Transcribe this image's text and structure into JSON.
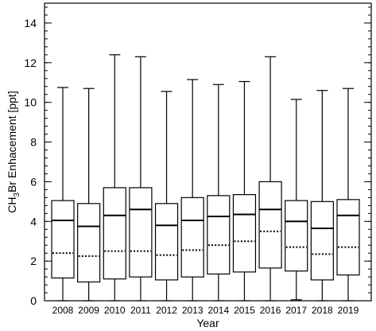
{
  "chart_data": {
    "type": "box",
    "title": "",
    "xlabel": "Year",
    "ylabel_main": "CH",
    "ylabel_sub": "3",
    "ylabel_rest": "Br Enhacement [ppt]",
    "ylim": [
      0,
      15
    ],
    "yticks": [
      0,
      2,
      4,
      6,
      8,
      10,
      12,
      14
    ],
    "yticks_minor_step": 0.4,
    "grid": false,
    "categories": [
      "2008",
      "2009",
      "2010",
      "2011",
      "2012",
      "2013",
      "2014",
      "2015",
      "2016",
      "2017",
      "2018",
      "2019"
    ],
    "boxes": [
      {
        "min": 0.0,
        "q1": 1.15,
        "median": 4.05,
        "mean": 2.4,
        "q3": 5.05,
        "max": 10.75
      },
      {
        "min": 0.0,
        "q1": 0.95,
        "median": 3.75,
        "mean": 2.25,
        "q3": 4.9,
        "max": 10.7
      },
      {
        "min": 0.0,
        "q1": 1.1,
        "median": 4.3,
        "mean": 2.5,
        "q3": 5.7,
        "max": 12.4
      },
      {
        "min": 0.0,
        "q1": 1.2,
        "median": 4.6,
        "mean": 2.5,
        "q3": 5.7,
        "max": 12.3
      },
      {
        "min": 0.0,
        "q1": 1.05,
        "median": 3.8,
        "mean": 2.3,
        "q3": 4.9,
        "max": 10.55
      },
      {
        "min": 0.0,
        "q1": 1.2,
        "median": 4.05,
        "mean": 2.55,
        "q3": 5.2,
        "max": 11.15
      },
      {
        "min": 0.0,
        "q1": 1.35,
        "median": 4.25,
        "mean": 2.8,
        "q3": 5.3,
        "max": 10.9
      },
      {
        "min": 0.0,
        "q1": 1.45,
        "median": 4.35,
        "mean": 3.0,
        "q3": 5.35,
        "max": 11.05
      },
      {
        "min": 0.0,
        "q1": 1.65,
        "median": 4.6,
        "mean": 3.5,
        "q3": 6.0,
        "max": 12.3
      },
      {
        "min": 0.05,
        "q1": 1.5,
        "median": 4.0,
        "mean": 2.7,
        "q3": 5.05,
        "max": 10.15
      },
      {
        "min": 0.0,
        "q1": 1.05,
        "median": 3.65,
        "mean": 2.35,
        "q3": 5.0,
        "max": 10.6
      },
      {
        "min": 0.0,
        "q1": 1.3,
        "median": 4.3,
        "mean": 2.7,
        "q3": 5.1,
        "max": 10.7
      }
    ]
  }
}
